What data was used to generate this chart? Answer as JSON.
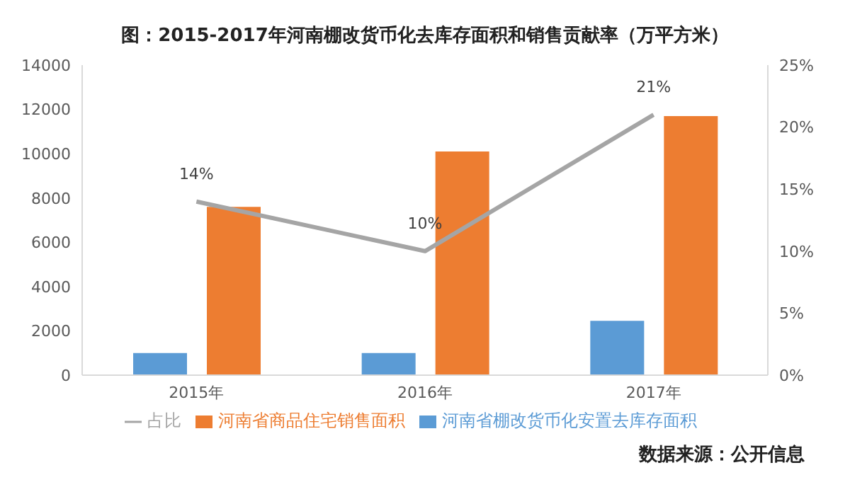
{
  "chart_data": {
    "type": "bar",
    "title": "图：2015-2017年河南棚改货币化去库存面积和销售贡献率（万平方米）",
    "categories": [
      "2015年",
      "2016年",
      "2017年"
    ],
    "series": [
      {
        "name": "河南省棚改货币化安置去库存面积",
        "color": "#5b9bd5",
        "values": [
          1000,
          1000,
          2450
        ]
      },
      {
        "name": "河南省商品住宅销售面积",
        "color": "#ed7d31",
        "values": [
          7600,
          10100,
          11700
        ]
      },
      {
        "name": "占比",
        "type": "line",
        "axis": "y2",
        "color": "#a5a5a5",
        "values": [
          14,
          10,
          21
        ],
        "value_labels": [
          "14%",
          "10%",
          "21%"
        ]
      }
    ],
    "ylim": [
      0,
      14000
    ],
    "yticks": [
      0,
      2000,
      4000,
      6000,
      8000,
      10000,
      12000,
      14000
    ],
    "y2lim": [
      0,
      25
    ],
    "y2ticks": [
      {
        "value": 0,
        "label": "0%"
      },
      {
        "value": 5,
        "label": "5%"
      },
      {
        "value": 10,
        "label": "10%"
      },
      {
        "value": 15,
        "label": "15%"
      },
      {
        "value": 20,
        "label": "20%"
      },
      {
        "value": 25,
        "label": "25%"
      }
    ],
    "grid": false,
    "legend": "bottom",
    "marker": "none",
    "line_style": "solid",
    "annotations": [
      "数据来源：公开信息"
    ]
  }
}
